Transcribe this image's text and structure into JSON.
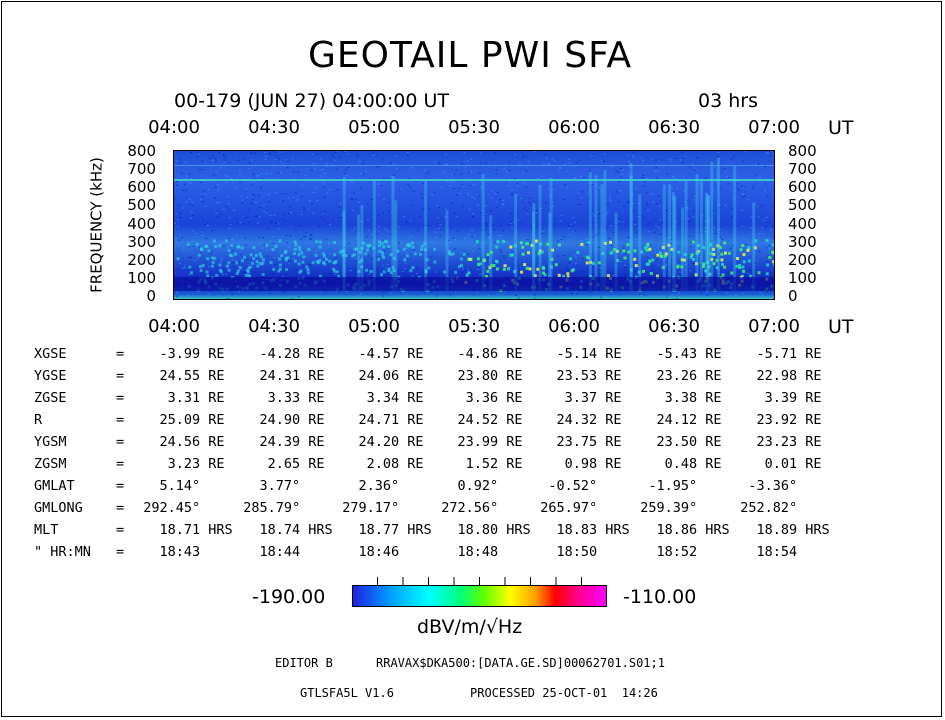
{
  "title": "GEOTAIL PWI SFA",
  "header": {
    "date": "00-179 (JUN 27) 04:00:00 UT",
    "duration": "03 hrs"
  },
  "chart_data": {
    "type": "heatmap",
    "title": "GEOTAIL PWI SFA",
    "ylabel": "FREQUENCY (kHz)",
    "x_unit": "UT",
    "x_ticks": [
      "04:00",
      "04:30",
      "05:00",
      "05:30",
      "06:00",
      "06:30",
      "07:00"
    ],
    "y_ticks": [
      "800",
      "700",
      "600",
      "500",
      "400",
      "300",
      "200",
      "100",
      "0"
    ],
    "ylim": [
      0,
      800
    ],
    "colorbar": {
      "min": "-190.00",
      "max": "-110.00",
      "unit": "dBV/m/√Hz"
    }
  },
  "orbit": {
    "rows": [
      {
        "label": "XGSE",
        "sep": "=",
        "values": [
          "-3.99 RE",
          "-4.28 RE",
          "-4.57 RE",
          "-4.86 RE",
          "-5.14 RE",
          "-5.43 RE",
          "-5.71 RE"
        ]
      },
      {
        "label": "YGSE",
        "sep": "=",
        "values": [
          "24.55 RE",
          "24.31 RE",
          "24.06 RE",
          "23.80 RE",
          "23.53 RE",
          "23.26 RE",
          "22.98 RE"
        ]
      },
      {
        "label": "ZGSE",
        "sep": "=",
        "values": [
          "3.31 RE",
          "3.33 RE",
          "3.34 RE",
          "3.36 RE",
          "3.37 RE",
          "3.38 RE",
          "3.39 RE"
        ]
      },
      {
        "label": "R",
        "sep": "=",
        "values": [
          "25.09 RE",
          "24.90 RE",
          "24.71 RE",
          "24.52 RE",
          "24.32 RE",
          "24.12 RE",
          "23.92 RE"
        ]
      },
      {
        "label": "YGSM",
        "sep": "=",
        "values": [
          "24.56 RE",
          "24.39 RE",
          "24.20 RE",
          "23.99 RE",
          "23.75 RE",
          "23.50 RE",
          "23.23 RE"
        ]
      },
      {
        "label": "ZGSM",
        "sep": "=",
        "values": [
          "3.23 RE",
          "2.65 RE",
          "2.08 RE",
          "1.52 RE",
          "0.98 RE",
          "0.48 RE",
          "0.01 RE"
        ]
      },
      {
        "label": "GMLAT",
        "sep": "=",
        "values": [
          "5.14°",
          "3.77°",
          "2.36°",
          "0.92°",
          "-0.52°",
          "-1.95°",
          "-3.36°"
        ]
      },
      {
        "label": "GMLONG",
        "sep": "=",
        "values": [
          "292.45°",
          "285.79°",
          "279.17°",
          "272.56°",
          "265.97°",
          "259.39°",
          "252.82°"
        ]
      },
      {
        "label": "MLT",
        "sep": "=",
        "values": [
          "18.71 HRS",
          "18.74 HRS",
          "18.77 HRS",
          "18.80 HRS",
          "18.83 HRS",
          "18.86 HRS",
          "18.89 HRS"
        ]
      },
      {
        "label": "\" HR:MN",
        "sep": "=",
        "values": [
          "18:43",
          "18:44",
          "18:46",
          "18:48",
          "18:50",
          "18:52",
          "18:54"
        ]
      }
    ]
  },
  "footer": {
    "editor": "EDITOR B",
    "path": "RRAVAX$DKA500:[DATA.GE.SD]00062701.S01;1",
    "version": "GTLSFA5L V1.6",
    "processed": "PROCESSED 25-OCT-01  14:26"
  },
  "colors": {
    "background": "#ffffff",
    "spectrogram_base": "#1a40d0"
  }
}
